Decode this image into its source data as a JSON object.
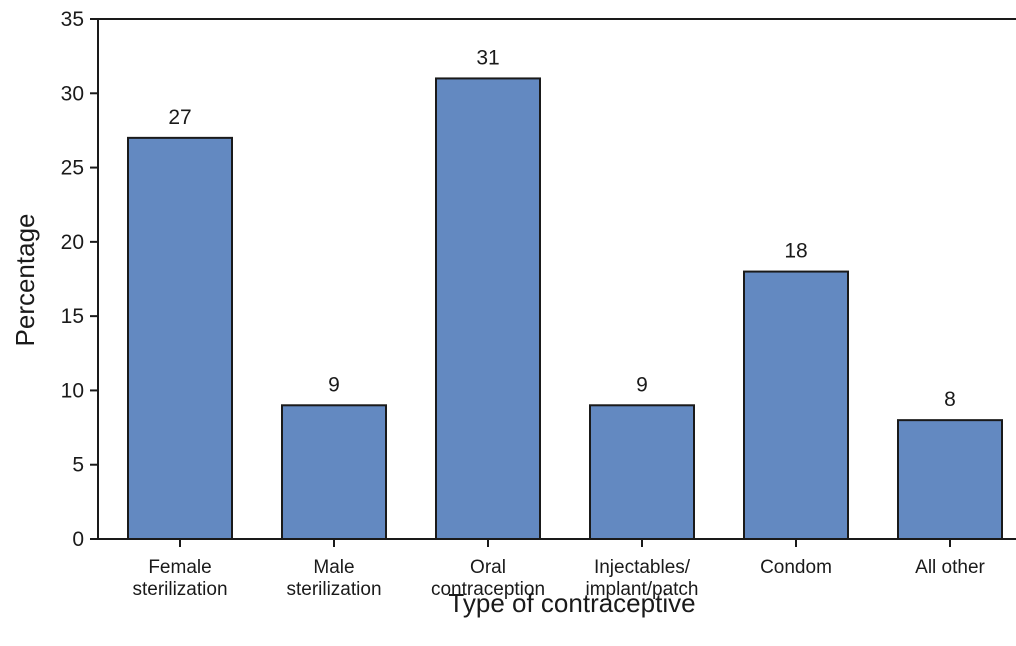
{
  "chart_data": {
    "type": "bar",
    "title": "",
    "xlabel": "Type of contraceptive",
    "ylabel": "Percentage",
    "ylim": [
      0,
      35
    ],
    "yticks": [
      0,
      5,
      10,
      15,
      20,
      25,
      30,
      35
    ],
    "categories": [
      [
        "Female",
        "sterilization"
      ],
      [
        "Male",
        "sterilization"
      ],
      [
        "Oral",
        "contraception"
      ],
      [
        "Injectables/",
        "implant/patch"
      ],
      [
        "Condom"
      ],
      [
        "All other"
      ]
    ],
    "values": [
      27,
      9,
      31,
      9,
      18,
      8
    ],
    "data_labels": [
      "27",
      "9",
      "31",
      "9",
      "18",
      "8"
    ],
    "bar_color": "#6389c1",
    "grid": false,
    "legend": "none"
  }
}
